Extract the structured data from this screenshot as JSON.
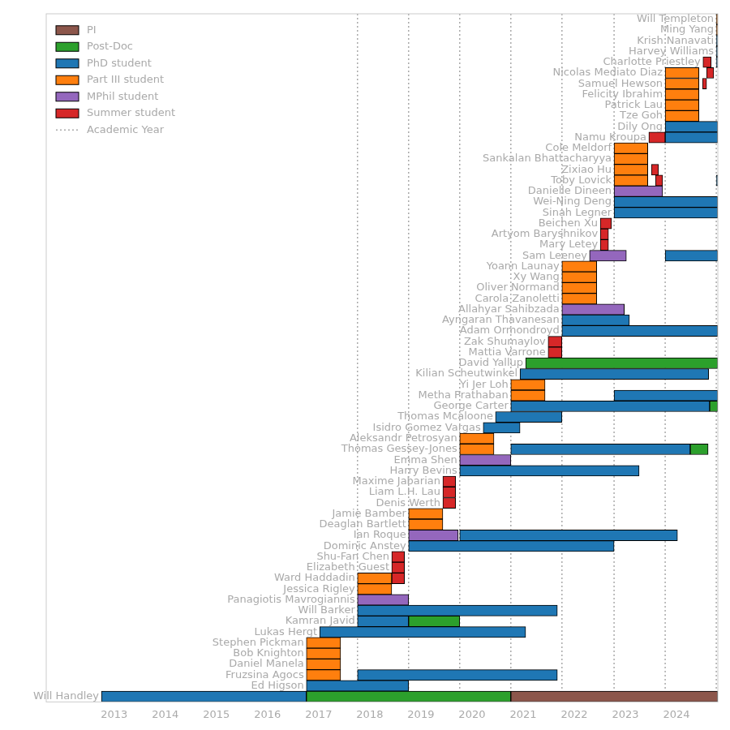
{
  "chart_data": {
    "type": "bar",
    "orientation": "horizontal",
    "tick_labels": "x",
    "grid": false,
    "legend": "upper left",
    "xlim": [
      2011.67,
      2024.81
    ],
    "xticks": [
      2013,
      2014,
      2015,
      2016,
      2017,
      2018,
      2019,
      2020,
      2021,
      2022,
      2023,
      2024
    ],
    "categories": [
      "Will Templeton",
      "Ming Yang",
      "Krish Nanavati",
      "Harvey Williams",
      "Charlotte Priestley",
      "Nicolas Mediato Diaz",
      "Samuel Hewson",
      "Felicity Ibrahim",
      "Patrick Lau",
      "Tze Goh",
      "Dily Ong",
      "Namu Kroupa",
      "Cole Meldorf",
      "Sankalan Bhattacharyya",
      "Zixiao Hu",
      "Toby Lovick",
      "Danielle Dineen",
      "Wei-Ning Deng",
      "Sinah Legner",
      "Beichen Xu",
      "Artyom Baryshnikov",
      "Mary Letey",
      "Sam Leeney",
      "Yoann Launay",
      "Xy Wang",
      "Oliver Normand",
      "Carola Zanoletti",
      "Allahyar Sahibzada",
      "Ayngaran Thavanesan",
      "Adam Ormondroyd",
      "Zak Shumaylov",
      "Mattia Varrone",
      "David Yallup",
      "Kilian Scheutwinkel",
      "Yi Jer Loh",
      "Metha Prathaban",
      "George Carter",
      "Thomas Mcaloone",
      "Isidro Gomez Vargas",
      "Aleksandr Petrosyan",
      "Thomas Gessey-Jones",
      "Emma Shen",
      "Harry Bevins",
      "Maxime Jabarian",
      "Liam L.H. Lau",
      "Denis Werth",
      "Jamie Bamber",
      "Deaglan Bartlett",
      "Ian Roque",
      "Dominic Anstey",
      "Shu-Fan Chen",
      "Elizabeth Guest",
      "Ward Haddadin",
      "Jessica Rigley",
      "Panagiotis Mavrogiannis",
      "Will Barker",
      "Kamran Javid",
      "Lukas Hergt",
      "Stephen Pickman",
      "Bob Knighton",
      "Daniel Manela",
      "Fruzsina Agocs",
      "Ed Higson",
      "Will Handley"
    ],
    "series": [
      {
        "name": "PI",
        "color": "#8c564b",
        "values": [
          null,
          null,
          null,
          null,
          null,
          null,
          null,
          null,
          null,
          null,
          null,
          null,
          null,
          null,
          null,
          null,
          null,
          null,
          null,
          null,
          null,
          null,
          null,
          null,
          null,
          null,
          null,
          null,
          null,
          null,
          null,
          null,
          null,
          null,
          null,
          null,
          null,
          null,
          null,
          null,
          null,
          null,
          null,
          null,
          null,
          null,
          null,
          null,
          null,
          null,
          null,
          null,
          null,
          null,
          null,
          null,
          null,
          null,
          null,
          null,
          null,
          null,
          null,
          [
            2020.76,
            2024.81
          ]
        ]
      },
      {
        "name": "Post-Doc",
        "color": "#2ca02c",
        "values": [
          null,
          null,
          null,
          null,
          null,
          null,
          null,
          null,
          null,
          null,
          null,
          null,
          null,
          null,
          null,
          null,
          null,
          null,
          null,
          null,
          null,
          null,
          null,
          null,
          null,
          null,
          null,
          null,
          null,
          null,
          null,
          null,
          [
            2021.05,
            2024.81
          ],
          null,
          null,
          null,
          [
            2024.65,
            2024.81
          ],
          null,
          null,
          null,
          [
            2024.27,
            2024.62
          ],
          null,
          null,
          null,
          null,
          null,
          null,
          null,
          null,
          null,
          null,
          null,
          null,
          null,
          null,
          null,
          [
            2018.76,
            2019.76
          ],
          null,
          null,
          null,
          null,
          null,
          null,
          [
            2016.76,
            2020.76
          ]
        ]
      },
      {
        "name": "PhD student",
        "color": "#1f77b4",
        "values": [
          null,
          null,
          [
            2024.78,
            2024.81
          ],
          [
            2024.78,
            2024.81
          ],
          [
            2024.78,
            2024.81
          ],
          null,
          null,
          null,
          null,
          null,
          [
            2023.78,
            2024.81
          ],
          [
            2023.78,
            2024.81
          ],
          null,
          null,
          null,
          [
            2024.78,
            2024.81
          ],
          null,
          [
            2022.78,
            2024.81
          ],
          [
            2022.78,
            2024.81
          ],
          null,
          null,
          null,
          [
            2023.78,
            2024.81
          ],
          null,
          null,
          null,
          null,
          null,
          [
            2021.76,
            2023.08
          ],
          [
            2021.76,
            2024.81
          ],
          null,
          null,
          null,
          [
            2020.94,
            2024.63
          ],
          null,
          [
            2022.78,
            2024.81
          ],
          [
            2020.76,
            2024.65
          ],
          [
            2020.46,
            2021.76
          ],
          [
            2020.22,
            2020.94
          ],
          null,
          [
            2020.76,
            2024.27
          ],
          null,
          [
            2019.76,
            2023.27
          ],
          null,
          null,
          null,
          null,
          null,
          [
            2019.76,
            2024.02
          ],
          [
            2018.76,
            2022.78
          ],
          null,
          null,
          null,
          null,
          null,
          [
            2017.76,
            2021.67
          ],
          [
            2017.76,
            2018.76
          ],
          [
            2017.02,
            2021.05
          ],
          null,
          null,
          null,
          [
            2017.76,
            2021.67
          ],
          [
            2016.76,
            2018.76
          ],
          [
            2012.75,
            2016.76
          ]
        ]
      },
      {
        "name": "Part III student",
        "color": "#ff7f0e",
        "values": [
          [
            2024.78,
            2024.81
          ],
          [
            2024.78,
            2024.81
          ],
          null,
          null,
          null,
          [
            2023.78,
            2024.44
          ],
          [
            2023.78,
            2024.44
          ],
          [
            2023.78,
            2024.44
          ],
          [
            2023.78,
            2024.44
          ],
          [
            2023.78,
            2024.44
          ],
          null,
          null,
          [
            2022.78,
            2023.44
          ],
          [
            2022.78,
            2023.44
          ],
          [
            2022.78,
            2023.44
          ],
          [
            2022.78,
            2023.44
          ],
          null,
          null,
          null,
          null,
          null,
          null,
          null,
          [
            2021.76,
            2022.44
          ],
          [
            2021.76,
            2022.44
          ],
          [
            2021.76,
            2022.44
          ],
          [
            2021.76,
            2022.44
          ],
          null,
          null,
          null,
          null,
          null,
          null,
          null,
          [
            2020.76,
            2021.43
          ],
          [
            2020.76,
            2021.43
          ],
          null,
          null,
          null,
          [
            2019.76,
            2020.43
          ],
          [
            2019.76,
            2020.43
          ],
          null,
          null,
          null,
          null,
          null,
          [
            2018.76,
            2019.43
          ],
          [
            2018.76,
            2019.43
          ],
          null,
          null,
          null,
          null,
          [
            2017.76,
            2018.43
          ],
          [
            2017.76,
            2018.43
          ],
          null,
          null,
          null,
          null,
          [
            2016.76,
            2017.43
          ],
          [
            2016.76,
            2017.43
          ],
          [
            2016.76,
            2017.43
          ],
          [
            2016.76,
            2017.43
          ],
          null,
          null
        ]
      },
      {
        "name": "MPhil student",
        "color": "#9467bd",
        "values": [
          null,
          null,
          null,
          null,
          null,
          null,
          null,
          null,
          null,
          null,
          null,
          null,
          null,
          null,
          null,
          null,
          [
            2022.78,
            2023.73
          ],
          null,
          null,
          null,
          null,
          null,
          [
            2022.3,
            2023.02
          ],
          null,
          null,
          null,
          null,
          [
            2021.76,
            2022.98
          ],
          null,
          null,
          null,
          null,
          null,
          null,
          null,
          null,
          null,
          null,
          null,
          null,
          null,
          [
            2019.76,
            2020.76
          ],
          null,
          null,
          null,
          null,
          null,
          null,
          [
            2018.76,
            2019.73
          ],
          null,
          null,
          null,
          null,
          null,
          [
            2017.76,
            2018.76
          ],
          null,
          null,
          null,
          null,
          null,
          null,
          null,
          null,
          null
        ]
      },
      {
        "name": "Summer student",
        "color": "#d62728",
        "values": [
          null,
          null,
          null,
          null,
          [
            2024.52,
            2024.68
          ],
          [
            2024.59,
            2024.73
          ],
          [
            2024.51,
            2024.59
          ],
          null,
          null,
          null,
          null,
          [
            2023.46,
            2023.78
          ],
          null,
          null,
          [
            2023.51,
            2023.65
          ],
          [
            2023.59,
            2023.73
          ],
          null,
          null,
          null,
          [
            2022.51,
            2022.73
          ],
          [
            2022.51,
            2022.67
          ],
          [
            2022.51,
            2022.67
          ],
          null,
          null,
          null,
          null,
          null,
          null,
          null,
          null,
          [
            2021.49,
            2021.76
          ],
          [
            2021.49,
            2021.76
          ],
          null,
          null,
          null,
          null,
          null,
          null,
          null,
          null,
          null,
          null,
          null,
          [
            2019.43,
            2019.68
          ],
          [
            2019.43,
            2019.68
          ],
          [
            2019.43,
            2019.68
          ],
          null,
          null,
          null,
          null,
          [
            2018.43,
            2018.68
          ],
          [
            2018.43,
            2018.68
          ],
          [
            2018.43,
            2018.68
          ],
          null,
          null,
          null,
          null,
          null,
          null,
          null,
          null,
          null,
          null,
          null
        ]
      }
    ],
    "academic_year": {
      "name": "Academic Year",
      "line_style": "dotted",
      "color": "#aaaaaa",
      "x": [
        2017.76,
        2018.76,
        2019.76,
        2020.76,
        2021.76,
        2022.78,
        2023.78,
        2024.78
      ]
    }
  }
}
